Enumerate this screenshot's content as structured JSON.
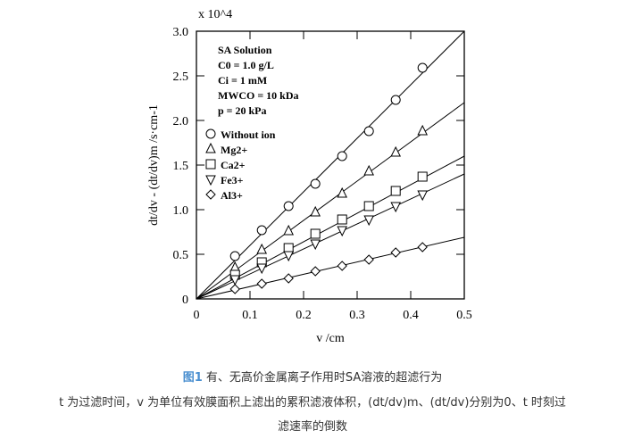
{
  "chart_data": {
    "type": "scatter",
    "title": "",
    "xlabel": "v /cm",
    "ylabel": "dt/dv - (dt/dv)m /s·cm-1",
    "y_multiplier": "x 10^4",
    "xlim": [
      0,
      0.5
    ],
    "ylim": [
      0,
      3.0
    ],
    "x_ticks": [
      "0",
      "0.1",
      "0.2",
      "0.3",
      "0.4",
      "0.5"
    ],
    "y_ticks": [
      "0",
      "0.5",
      "1.0",
      "1.5",
      "2.0",
      "2.5",
      "3.0"
    ],
    "grid": false,
    "legend_position": "top-left",
    "annotations": [
      "SA Solution",
      "C0 = 1.0 g/L",
      "Ci = 1 mM",
      "MWCO = 10 kDa",
      "p = 20 kPa"
    ],
    "x": [
      0.072,
      0.122,
      0.172,
      0.222,
      0.272,
      0.322,
      0.372,
      0.422
    ],
    "series": [
      {
        "name": "Without ion",
        "marker": "circle",
        "values": [
          0.48,
          0.77,
          1.04,
          1.29,
          1.6,
          1.88,
          2.23,
          2.59
        ],
        "fit_end": 3.0
      },
      {
        "name": "Mg2+",
        "marker": "triangle-up",
        "values": [
          0.35,
          0.55,
          0.76,
          0.97,
          1.18,
          1.43,
          1.64,
          1.88
        ],
        "fit_end": 2.2
      },
      {
        "name": "Ca2+",
        "marker": "square",
        "values": [
          0.27,
          0.41,
          0.57,
          0.73,
          0.89,
          1.04,
          1.21,
          1.37
        ],
        "fit_end": 1.6
      },
      {
        "name": "Fe3+",
        "marker": "triangle-down",
        "values": [
          0.22,
          0.35,
          0.49,
          0.62,
          0.77,
          0.89,
          1.04,
          1.17
        ],
        "fit_end": 1.4
      },
      {
        "name": "Al3+",
        "marker": "diamond",
        "values": [
          0.11,
          0.17,
          0.23,
          0.31,
          0.37,
          0.44,
          0.52,
          0.58
        ],
        "fit_end": 0.69
      }
    ]
  },
  "caption": {
    "fig_no": "图1",
    "title": "有、无高价金属离子作用时SA溶液的超滤行为",
    "note_line1": "t 为过滤时间，v 为单位有效膜面积上滤出的累积滤液体积，(dt/dv)m、(dt/dv)分别为0、t 时刻过",
    "note_line2": "滤速率的倒数"
  }
}
